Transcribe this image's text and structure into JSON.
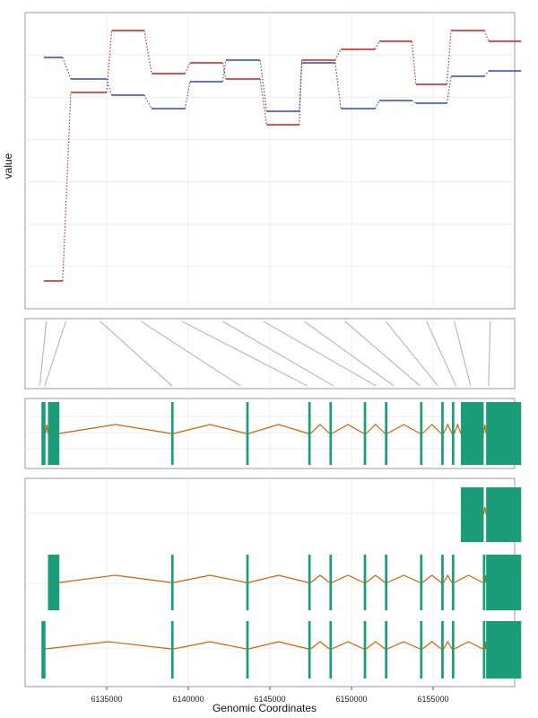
{
  "chart_data": {
    "type": "line",
    "xlabel": "Genomic Coordinates",
    "ylabel": "value",
    "xlim": [
      6130000,
      6160000
    ],
    "x_ticks": [
      6135000,
      6140000,
      6145000,
      6150000,
      6155000
    ],
    "x_tick_labels": [
      "6135000",
      "6140000",
      "6145000",
      "6150000",
      "6155000"
    ],
    "grid": true,
    "colors": {
      "series_red": "#cc1f1f",
      "series_blue": "#3344bb",
      "exon": "#1b9e77",
      "intron": "#d95f02",
      "mapping": "#bbbbbb"
    },
    "segments": [
      [
        6131150,
        6132300
      ],
      [
        6132800,
        6135000
      ],
      [
        6135300,
        6137300
      ],
      [
        6137750,
        6139800
      ],
      [
        6140100,
        6142100
      ],
      [
        6142300,
        6144400
      ],
      [
        6144800,
        6146800
      ],
      [
        6146950,
        6149000
      ],
      [
        6149350,
        6151450
      ],
      [
        6151700,
        6153700
      ],
      [
        6153950,
        6155850
      ],
      [
        6156100,
        6158150
      ],
      [
        6158400,
        6160400
      ]
    ],
    "series": [
      {
        "values": [
          0.05,
          0.75,
          0.98,
          0.82,
          0.86,
          0.8,
          0.63,
          0.87,
          0.91,
          0.94,
          0.78,
          0.98,
          0.94
        ]
      },
      {
        "values": [
          0.88,
          0.8,
          0.74,
          0.69,
          0.79,
          0.87,
          0.68,
          0.86,
          0.69,
          0.72,
          0.71,
          0.81,
          0.83
        ]
      }
    ],
    "mapping_lines": [
      [
        6131300,
        6130900
      ],
      [
        6132500,
        6131200
      ],
      [
        6134600,
        6139000
      ],
      [
        6137100,
        6143200
      ],
      [
        6139600,
        6147300
      ],
      [
        6142100,
        6148900
      ],
      [
        6144600,
        6151500
      ],
      [
        6147100,
        6152600
      ],
      [
        6149600,
        6154200
      ],
      [
        6152100,
        6155300
      ],
      [
        6154600,
        6156400
      ],
      [
        6156300,
        6157300
      ],
      [
        6158500,
        6158400
      ]
    ],
    "genome_track": {
      "exons": [
        [
          6131000,
          6131250
        ],
        [
          6131400,
          6132100
        ],
        [
          6138950,
          6139100
        ],
        [
          6143550,
          6143700
        ],
        [
          6147350,
          6147500
        ],
        [
          6148650,
          6148800
        ],
        [
          6150750,
          6150900
        ],
        [
          6152050,
          6152200
        ],
        [
          6154200,
          6154350
        ],
        [
          6155500,
          6155650
        ],
        [
          6156150,
          6156300
        ],
        [
          6156700,
          6158100
        ],
        [
          6158250,
          6160400
        ]
      ],
      "intron_peaks": [
        [
          6131250,
          6131400
        ],
        [
          6132100,
          6138950
        ],
        [
          6139100,
          6143550
        ],
        [
          6143700,
          6147350
        ],
        [
          6147500,
          6148650
        ],
        [
          6148800,
          6150750
        ],
        [
          6150900,
          6152050
        ],
        [
          6152200,
          6154200
        ],
        [
          6154350,
          6155500
        ],
        [
          6155650,
          6156150
        ],
        [
          6156300,
          6156700
        ],
        [
          6158100,
          6158250
        ]
      ]
    },
    "transcripts": [
      {
        "exons": [
          [
            6156700,
            6158100
          ],
          [
            6158250,
            6160400
          ]
        ],
        "introns": [
          [
            6158100,
            6158250
          ]
        ]
      },
      {
        "exons": [
          [
            6131400,
            6132100
          ],
          [
            6138950,
            6139100
          ],
          [
            6143550,
            6143700
          ],
          [
            6147350,
            6147500
          ],
          [
            6148650,
            6148800
          ],
          [
            6150750,
            6150900
          ],
          [
            6152050,
            6152200
          ],
          [
            6154200,
            6154350
          ],
          [
            6155500,
            6155650
          ],
          [
            6156150,
            6156300
          ],
          [
            6158050,
            6158200
          ],
          [
            6158250,
            6160400
          ]
        ],
        "introns": [
          [
            6132100,
            6138950
          ],
          [
            6139100,
            6143550
          ],
          [
            6143700,
            6147350
          ],
          [
            6147500,
            6148650
          ],
          [
            6148800,
            6150750
          ],
          [
            6150900,
            6152050
          ],
          [
            6152200,
            6154200
          ],
          [
            6154350,
            6155500
          ],
          [
            6155650,
            6156150
          ],
          [
            6156300,
            6158050
          ],
          [
            6158200,
            6158250
          ]
        ]
      },
      {
        "exons": [
          [
            6131000,
            6131250
          ],
          [
            6138950,
            6139100
          ],
          [
            6143550,
            6143700
          ],
          [
            6147350,
            6147500
          ],
          [
            6148650,
            6148800
          ],
          [
            6150750,
            6150900
          ],
          [
            6152050,
            6152200
          ],
          [
            6154200,
            6154350
          ],
          [
            6155500,
            6155650
          ],
          [
            6156150,
            6156300
          ],
          [
            6158050,
            6158200
          ],
          [
            6158250,
            6160400
          ]
        ],
        "introns": [
          [
            6131250,
            6138950
          ],
          [
            6139100,
            6143550
          ],
          [
            6143700,
            6147350
          ],
          [
            6147500,
            6148650
          ],
          [
            6148800,
            6150750
          ],
          [
            6150900,
            6152050
          ],
          [
            6152200,
            6154200
          ],
          [
            6154350,
            6155500
          ],
          [
            6155650,
            6156150
          ],
          [
            6156300,
            6158050
          ],
          [
            6158200,
            6158250
          ]
        ]
      }
    ]
  }
}
